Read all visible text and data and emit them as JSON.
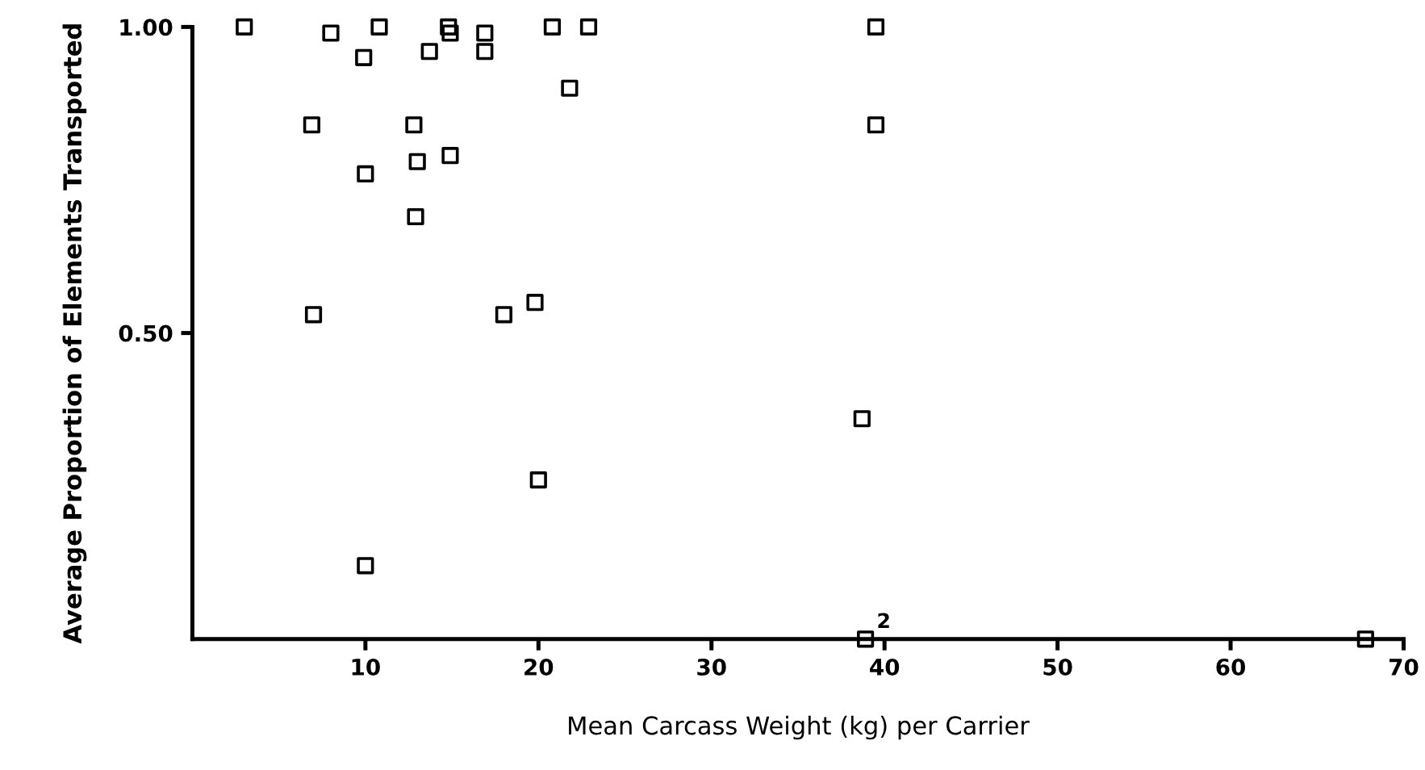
{
  "chart_data": {
    "type": "scatter",
    "xlabel": "Mean Carcass Weight (kg) per Carrier",
    "ylabel": "Average Proportion of Elements Transported",
    "x": [
      3.0,
      8.0,
      10.8,
      9.9,
      14.8,
      14.9,
      13.7,
      16.9,
      16.9,
      20.8,
      22.9,
      21.8,
      6.9,
      12.8,
      13.0,
      14.9,
      10.0,
      12.9,
      7.0,
      18.0,
      19.8,
      39.5,
      39.5,
      38.7,
      20.0,
      10.0,
      38.9,
      67.8
    ],
    "values": [
      1.0,
      0.99,
      1.0,
      0.95,
      1.0,
      0.99,
      0.96,
      0.99,
      0.96,
      1.0,
      1.0,
      0.9,
      0.84,
      0.84,
      0.78,
      0.79,
      0.76,
      0.69,
      0.53,
      0.53,
      0.55,
      1.0,
      0.84,
      0.36,
      0.26,
      0.12,
      0.0,
      0.0
    ],
    "color": "#000000",
    "marker": "square",
    "grid": false,
    "legend": false,
    "xlim": [
      0,
      70
    ],
    "ylim": [
      0,
      1.0
    ],
    "xticks": [
      10,
      20,
      30,
      40,
      50,
      60,
      70
    ],
    "yticks": [
      {
        "value": 0.5,
        "label": "0.50"
      },
      {
        "value": 1.0,
        "label": "1.00"
      }
    ],
    "annotations": [
      {
        "text": "2",
        "x": 38.9,
        "y": 0.0
      }
    ]
  }
}
